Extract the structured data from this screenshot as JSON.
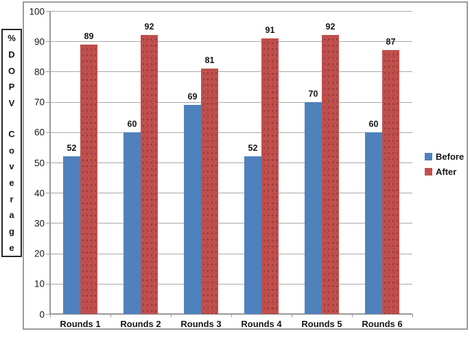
{
  "chart_data": {
    "type": "bar",
    "title": "",
    "categories": [
      "Rounds 1",
      "Rounds 2",
      "Rounds 3",
      "Rounds 4",
      "Rounds 5",
      "Rounds 6"
    ],
    "series": [
      {
        "name": "Before",
        "color": "#4f81bd",
        "values": [
          52,
          60,
          69,
          52,
          70,
          60
        ]
      },
      {
        "name": "After",
        "color": "#c0504d",
        "values": [
          89,
          92,
          81,
          91,
          92,
          87
        ]
      }
    ],
    "ylabel": "% DOPV Coverage",
    "ylabel_chars": [
      "%",
      "D",
      "O",
      "P",
      "V",
      "",
      "C",
      "o",
      "v",
      "e",
      "r",
      "a",
      "g",
      "e"
    ],
    "ylim": [
      0,
      100
    ],
    "yticks": [
      0,
      10,
      20,
      30,
      40,
      50,
      60,
      70,
      80,
      90,
      100
    ],
    "grid": true,
    "data_labels": true,
    "legend_position": "right"
  },
  "colors": {
    "before": "#4f81bd",
    "after": "#c0504d",
    "gridline": "#a8a8a8",
    "axis": "#9a9a9a",
    "frame_border": "#9a9a9a",
    "label_box_border": "#262626",
    "text": "#151515"
  }
}
